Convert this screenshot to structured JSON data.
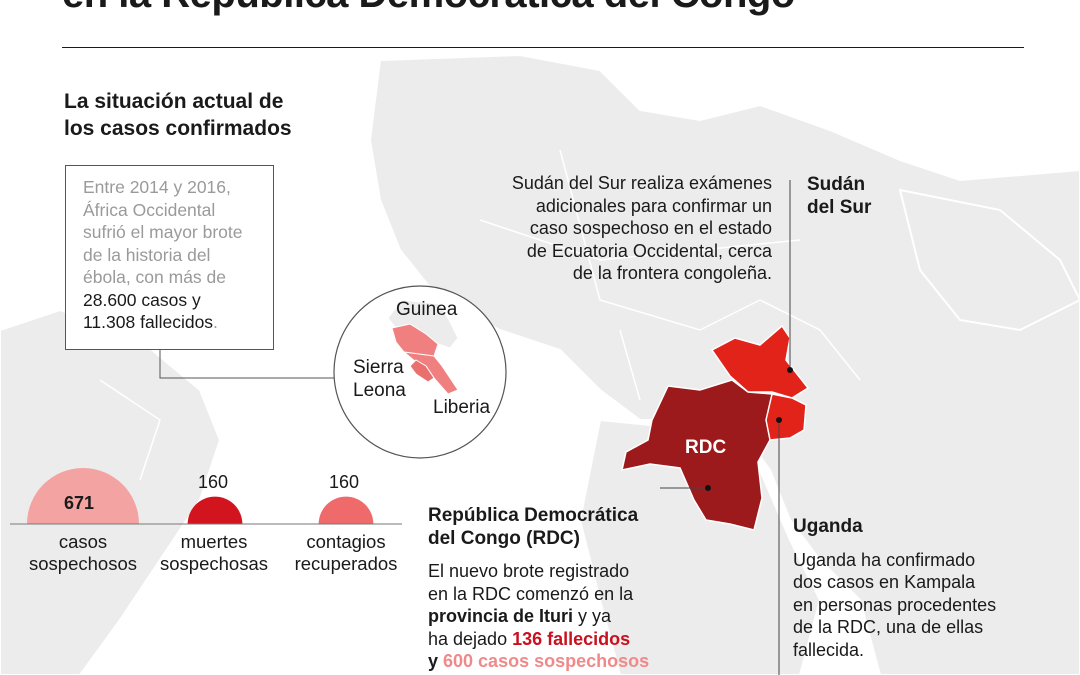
{
  "header": {
    "title": "en la República Democrática del Congo",
    "subtitle_line1": "La situación actual de",
    "subtitle_line2": "los casos confirmados"
  },
  "west_africa_note": {
    "line1": "Entre 2014 y 2016,",
    "line2": "África Occidental",
    "line3": "sufrió el mayor brote",
    "line4": "de la historia del",
    "line5": "ébola, con más de",
    "line6": "28.600 casos y",
    "line7": "11.308 fallecidos",
    "line7_end": "."
  },
  "inset_map": {
    "guinea": "Guinea",
    "sierra_leona_1": "Sierra",
    "sierra_leona_2": "Leona",
    "liberia": "Liberia"
  },
  "stats": [
    {
      "value": "671",
      "label_1": "casos",
      "label_2": "sospechosos",
      "color": "#f4a3a3",
      "count": 671
    },
    {
      "value": "160",
      "label_1": "muertes",
      "label_2": "sospechosas",
      "color": "#d2141f",
      "count": 160
    },
    {
      "value": "160",
      "label_1": "contagios",
      "label_2": "recuperados",
      "color": "#ef6a6a",
      "count": 160
    }
  ],
  "map": {
    "rdc_label": "RDC",
    "colors": {
      "rdc": "#9c1a1c",
      "south_sudan": "#e2231a",
      "uganda": "#e2231a",
      "land": "#ececec"
    }
  },
  "south_sudan": {
    "heading_1": "Sudán",
    "heading_2": "del Sur",
    "text_1": "Sudán del Sur realiza exámenes",
    "text_2": "adicionales para confirmar un",
    "text_3": "caso sospechoso en el estado",
    "text_4": "de Ecuatoria Occidental, cerca",
    "text_5": "de la frontera congoleña."
  },
  "rdc": {
    "heading_1": "República Democrática",
    "heading_2": "del Congo (RDC)",
    "text_1": "El nuevo brote registrado",
    "text_2": "en la RDC comenzó en la",
    "text_3a": "provincia de Ituri",
    "text_3b": " y ya",
    "text_4a": "ha dejado ",
    "text_4b": "136 fallecidos",
    "text_5a": "y ",
    "text_5b": "600 casos sospechosos"
  },
  "uganda": {
    "heading": "Uganda",
    "text_1": "Uganda ha confirmado",
    "text_2": "dos casos en Kampala",
    "text_3": "en personas procedentes",
    "text_4": "de la RDC, una de ellas",
    "text_5": "fallecida."
  }
}
